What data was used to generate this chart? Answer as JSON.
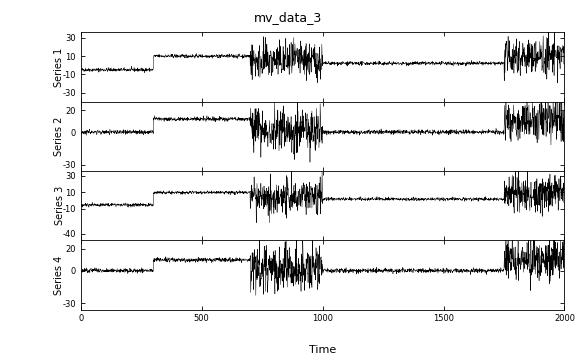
{
  "title": "mv_data_3",
  "xlabel": "Time",
  "series_labels": [
    "Series 1",
    "Series 2",
    "Series 3",
    "Series 4"
  ],
  "n_total": 2000,
  "series_params": [
    {
      "seg_means": [
        -5,
        10,
        5,
        2,
        10
      ],
      "seg_stds": [
        1.0,
        1.0,
        10.0,
        1.0,
        10.0
      ],
      "yticks": [
        -30,
        -10,
        10,
        30
      ],
      "ylim": [
        -40,
        36
      ]
    },
    {
      "seg_means": [
        0,
        12,
        2,
        0,
        12
      ],
      "seg_stds": [
        1.0,
        1.0,
        10.0,
        1.0,
        10.0
      ],
      "yticks": [
        -30,
        0,
        20
      ],
      "ylim": [
        -36,
        28
      ]
    },
    {
      "seg_means": [
        -5,
        10,
        5,
        2,
        10
      ],
      "seg_stds": [
        1.0,
        1.0,
        10.0,
        1.0,
        10.0
      ],
      "yticks": [
        -40,
        -10,
        10,
        30
      ],
      "ylim": [
        -48,
        36
      ]
    },
    {
      "seg_means": [
        0,
        10,
        2,
        0,
        10
      ],
      "seg_stds": [
        1.0,
        1.0,
        10.0,
        1.0,
        10.0
      ],
      "yticks": [
        -30,
        0,
        20
      ],
      "ylim": [
        -36,
        28
      ]
    }
  ],
  "seg_starts": [
    0,
    300,
    700,
    1000,
    1750
  ],
  "seg_ends": [
    300,
    700,
    1000,
    1750,
    2000
  ],
  "line_color": "black",
  "line_width": 0.35,
  "face_color": "white",
  "xticks": [
    0,
    500,
    1000,
    1500,
    2000
  ],
  "xlim": [
    0,
    2000
  ],
  "title_fontsize": 9,
  "axis_label_fontsize": 8,
  "tick_label_fontsize": 6,
  "series_label_fontsize": 7
}
